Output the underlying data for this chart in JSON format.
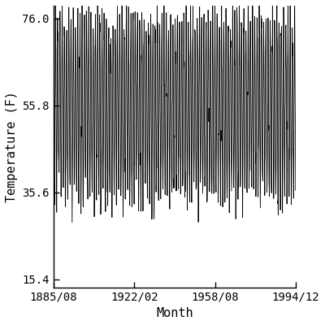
{
  "title": "",
  "xlabel": "Month",
  "ylabel": "Temperature (F)",
  "xlim_start_year": 1885,
  "xlim_start_month": 8,
  "xlim_end_year": 1994,
  "xlim_end_month": 12,
  "ylim": [
    13.5,
    79.0
  ],
  "yticks": [
    15.4,
    35.6,
    55.8,
    76
  ],
  "xtick_labels": [
    "1885/08",
    "1922/02",
    "1958/08",
    "1994/12"
  ],
  "xtick_decimal": [
    1885.5833,
    1922.0833,
    1958.5833,
    1994.9167
  ],
  "line_color": "#000000",
  "linewidth": 0.6,
  "figsize": [
    4.0,
    4.0
  ],
  "dpi": 100,
  "mean_temp": 55.5,
  "amplitude": 20.5,
  "noise_std": 3.2,
  "seed": 12345,
  "font_family": "monospace",
  "font_size": 10
}
